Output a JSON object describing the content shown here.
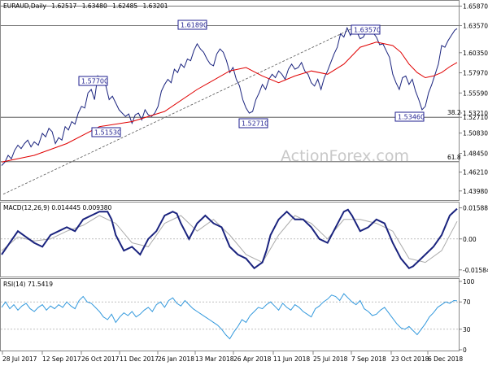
{
  "chart_data": {
    "type": "line",
    "symbol": "EURAUD,Daily",
    "ohlc": [
      "1.62517",
      "1.63480",
      "1.62485",
      "1.63201"
    ],
    "watermark": "ActionForex.com",
    "x_ticks": [
      "28 Jul 2017",
      "12 Sep 2017",
      "26 Oct 2017",
      "11 Dec 2017",
      "26 Jan 2018",
      "13 Mar 2018",
      "26 Apr 2018",
      "11 Jun 2018",
      "25 Jul 2018",
      "7 Sep 2018",
      "23 Oct 2018",
      "6 Dec 2018"
    ],
    "price": {
      "ylim": [
        1.43,
        1.664
      ],
      "y_ticks": [
        "1.65870",
        "1.63570",
        "1.60350",
        "1.57970",
        "1.55590",
        "1.53210",
        "1.52710",
        "1.50830",
        "1.48450",
        "1.46210",
        "1.43980"
      ],
      "y_tick_values": [
        1.6587,
        1.6357,
        1.6035,
        1.5797,
        1.5559,
        1.5321,
        1.5271,
        1.5083,
        1.4845,
        1.4621,
        1.4398
      ],
      "close_x": [
        0,
        4,
        8,
        12,
        16,
        20,
        24,
        28,
        32,
        36,
        40,
        45,
        50,
        54,
        58,
        62,
        66,
        70,
        74,
        78,
        82,
        86,
        90,
        94,
        98,
        102,
        106,
        110,
        114,
        118,
        121,
        124,
        128,
        132,
        136,
        140,
        144,
        148,
        152,
        156,
        160,
        164,
        168,
        172,
        176,
        180,
        184,
        188,
        192,
        196,
        200,
        204,
        208,
        212,
        216,
        220,
        224,
        228,
        232,
        236,
        240,
        244,
        248,
        252,
        256,
        260,
        264,
        268,
        272,
        276,
        280,
        284,
        288,
        292,
        296,
        300,
        304,
        308,
        312,
        316,
        320,
        324,
        328,
        332,
        336,
        340,
        344,
        348,
        352,
        356,
        360,
        364,
        368,
        372,
        376,
        380,
        384,
        388,
        392,
        396,
        400,
        404,
        408,
        412,
        416,
        420,
        424,
        428,
        432,
        436,
        440,
        444,
        448,
        452,
        456,
        460,
        464,
        468,
        472,
        476,
        480,
        484,
        488,
        492,
        496,
        500,
        504,
        508,
        512,
        516,
        520,
        524,
        528,
        532,
        536,
        540,
        544,
        548,
        552,
        556,
        559
      ],
      "close_y": [
        1.47,
        1.474,
        1.482,
        1.478,
        1.488,
        1.494,
        1.49,
        1.496,
        1.5,
        1.492,
        1.498,
        1.494,
        1.508,
        1.504,
        1.514,
        1.51,
        1.496,
        1.503,
        1.5,
        1.516,
        1.512,
        1.522,
        1.519,
        1.532,
        1.54,
        1.538,
        1.556,
        1.56,
        1.548,
        1.576,
        1.57,
        1.568,
        1.564,
        1.548,
        1.552,
        1.544,
        1.536,
        1.532,
        1.528,
        1.531,
        1.52,
        1.53,
        1.532,
        1.524,
        1.536,
        1.53,
        1.528,
        1.532,
        1.54,
        1.558,
        1.566,
        1.572,
        1.568,
        1.584,
        1.58,
        1.59,
        1.586,
        1.596,
        1.594,
        1.606,
        1.614,
        1.608,
        1.604,
        1.596,
        1.59,
        1.588,
        1.602,
        1.608,
        1.604,
        1.594,
        1.58,
        1.586,
        1.572,
        1.564,
        1.548,
        1.538,
        1.532,
        1.534,
        1.548,
        1.556,
        1.566,
        1.56,
        1.572,
        1.578,
        1.574,
        1.582,
        1.578,
        1.572,
        1.584,
        1.59,
        1.584,
        1.586,
        1.592,
        1.582,
        1.578,
        1.568,
        1.564,
        1.572,
        1.56,
        1.574,
        1.582,
        1.592,
        1.602,
        1.61,
        1.626,
        1.622,
        1.633,
        1.624,
        1.632,
        1.628,
        1.62,
        1.622,
        1.63,
        1.634,
        1.627,
        1.622,
        1.613,
        1.614,
        1.606,
        1.598,
        1.578,
        1.568,
        1.56,
        1.574,
        1.576,
        1.566,
        1.572,
        1.558,
        1.548,
        1.536,
        1.54,
        1.556,
        1.566,
        1.578,
        1.59,
        1.612,
        1.61,
        1.618,
        1.624,
        1.63,
        1.632
      ],
      "sma_x": [
        0,
        40,
        80,
        120,
        160,
        200,
        240,
        280,
        300,
        320,
        340,
        360,
        380,
        400,
        420,
        440,
        460,
        480,
        490,
        500,
        510,
        520,
        530,
        540,
        550,
        559
      ],
      "sma_y": [
        1.474,
        1.482,
        1.496,
        1.516,
        1.522,
        1.534,
        1.56,
        1.582,
        1.586,
        1.576,
        1.568,
        1.576,
        1.582,
        1.578,
        1.59,
        1.61,
        1.616,
        1.612,
        1.604,
        1.59,
        1.58,
        1.574,
        1.576,
        1.58,
        1.587,
        1.592
      ],
      "lines": [
        {
          "label": "",
          "value": 1.6587
        },
        {
          "label": "",
          "value": 1.6357
        },
        {
          "label": "38.2",
          "value": 1.5271
        },
        {
          "label": "61.8",
          "value": 1.4745
        }
      ],
      "boxes": [
        "1.57700",
        "1.51530",
        "1.61890",
        "1.52710",
        "1.63570",
        "1.53460"
      ],
      "colors": {
        "price": "#1a237e",
        "sma": "#e00000",
        "trend": "#555555"
      }
    },
    "macd": {
      "title": "MACD(12,26,9) 0.014445 0.009380",
      "ylim": [
        -0.0184,
        0.0174
      ],
      "y_ticks": [
        "0.015887",
        "0.00",
        "-0.01584"
      ],
      "y_tick_values": [
        0.015887,
        0.0,
        -0.01584
      ],
      "macd_x": [
        0,
        10,
        20,
        30,
        40,
        50,
        60,
        70,
        80,
        90,
        100,
        110,
        120,
        130,
        135,
        140,
        150,
        160,
        170,
        180,
        190,
        200,
        210,
        215,
        220,
        230,
        240,
        250,
        255,
        260,
        270,
        280,
        290,
        300,
        310,
        320,
        325,
        330,
        340,
        350,
        360,
        370,
        380,
        390,
        400,
        410,
        420,
        425,
        430,
        440,
        450,
        460,
        470,
        480,
        490,
        500,
        505,
        510,
        520,
        530,
        540,
        550,
        559
      ],
      "macd_y": [
        -0.008,
        -0.002,
        0.004,
        0.001,
        -0.002,
        -0.004,
        0.002,
        0.004,
        0.006,
        0.004,
        0.01,
        0.012,
        0.014,
        0.014,
        0.01,
        0.002,
        -0.006,
        -0.004,
        -0.008,
        0.0,
        0.004,
        0.012,
        0.014,
        0.013,
        0.008,
        0.0,
        0.008,
        0.012,
        0.01,
        0.008,
        0.006,
        -0.004,
        -0.008,
        -0.01,
        -0.015,
        -0.012,
        -0.006,
        0.002,
        0.01,
        0.014,
        0.01,
        0.01,
        0.006,
        0.0,
        -0.002,
        0.006,
        0.014,
        0.015,
        0.012,
        0.004,
        0.006,
        0.01,
        0.008,
        -0.002,
        -0.01,
        -0.015,
        -0.014,
        -0.012,
        -0.008,
        -0.004,
        0.002,
        0.012,
        0.0155
      ],
      "signal_x": [
        0,
        20,
        40,
        60,
        80,
        100,
        120,
        140,
        160,
        180,
        200,
        220,
        240,
        260,
        280,
        300,
        320,
        340,
        360,
        380,
        400,
        420,
        440,
        460,
        480,
        500,
        520,
        540,
        559
      ],
      "signal_y": [
        -0.006,
        0.001,
        -0.001,
        0.0,
        0.004,
        0.007,
        0.012,
        0.008,
        -0.002,
        -0.004,
        0.008,
        0.012,
        0.004,
        0.01,
        0.002,
        -0.008,
        -0.012,
        0.002,
        0.012,
        0.008,
        0.0,
        0.01,
        0.01,
        0.008,
        0.004,
        -0.01,
        -0.012,
        -0.006,
        0.009
      ]
    },
    "rsi": {
      "title": "RSI(14) 71.5419",
      "ylim": [
        0,
        100
      ],
      "y_ticks": [
        "100",
        "70",
        "30",
        "0"
      ],
      "y_tick_values": [
        100,
        70,
        30,
        0
      ],
      "x": [
        0,
        5,
        10,
        15,
        20,
        25,
        30,
        35,
        40,
        45,
        50,
        55,
        60,
        65,
        70,
        75,
        80,
        85,
        90,
        95,
        100,
        105,
        110,
        115,
        120,
        125,
        130,
        135,
        140,
        145,
        150,
        155,
        160,
        165,
        170,
        175,
        180,
        185,
        190,
        195,
        200,
        205,
        210,
        215,
        220,
        225,
        230,
        235,
        240,
        245,
        250,
        255,
        260,
        265,
        270,
        275,
        280,
        285,
        290,
        295,
        300,
        305,
        310,
        315,
        320,
        325,
        330,
        335,
        340,
        345,
        350,
        355,
        360,
        365,
        370,
        375,
        380,
        385,
        390,
        395,
        400,
        405,
        410,
        415,
        420,
        425,
        430,
        435,
        440,
        445,
        450,
        455,
        460,
        465,
        470,
        475,
        480,
        485,
        490,
        495,
        500,
        505,
        510,
        515,
        520,
        525,
        530,
        535,
        540,
        545,
        550,
        555,
        559
      ],
      "y": [
        62,
        70,
        60,
        66,
        58,
        64,
        68,
        60,
        56,
        62,
        66,
        58,
        64,
        60,
        66,
        62,
        70,
        64,
        60,
        72,
        78,
        70,
        68,
        62,
        56,
        48,
        44,
        52,
        40,
        48,
        54,
        50,
        56,
        48,
        52,
        58,
        62,
        56,
        66,
        70,
        62,
        72,
        76,
        68,
        64,
        72,
        66,
        60,
        56,
        52,
        48,
        44,
        40,
        36,
        30,
        22,
        16,
        26,
        34,
        44,
        40,
        50,
        56,
        62,
        60,
        66,
        70,
        64,
        58,
        68,
        62,
        58,
        66,
        62,
        56,
        52,
        48,
        60,
        64,
        70,
        74,
        80,
        78,
        72,
        82,
        76,
        70,
        66,
        72,
        60,
        56,
        50,
        52,
        58,
        62,
        54,
        46,
        38,
        32,
        30,
        34,
        28,
        22,
        30,
        38,
        48,
        54,
        62,
        66,
        70,
        68,
        72,
        71.5
      ]
    }
  }
}
